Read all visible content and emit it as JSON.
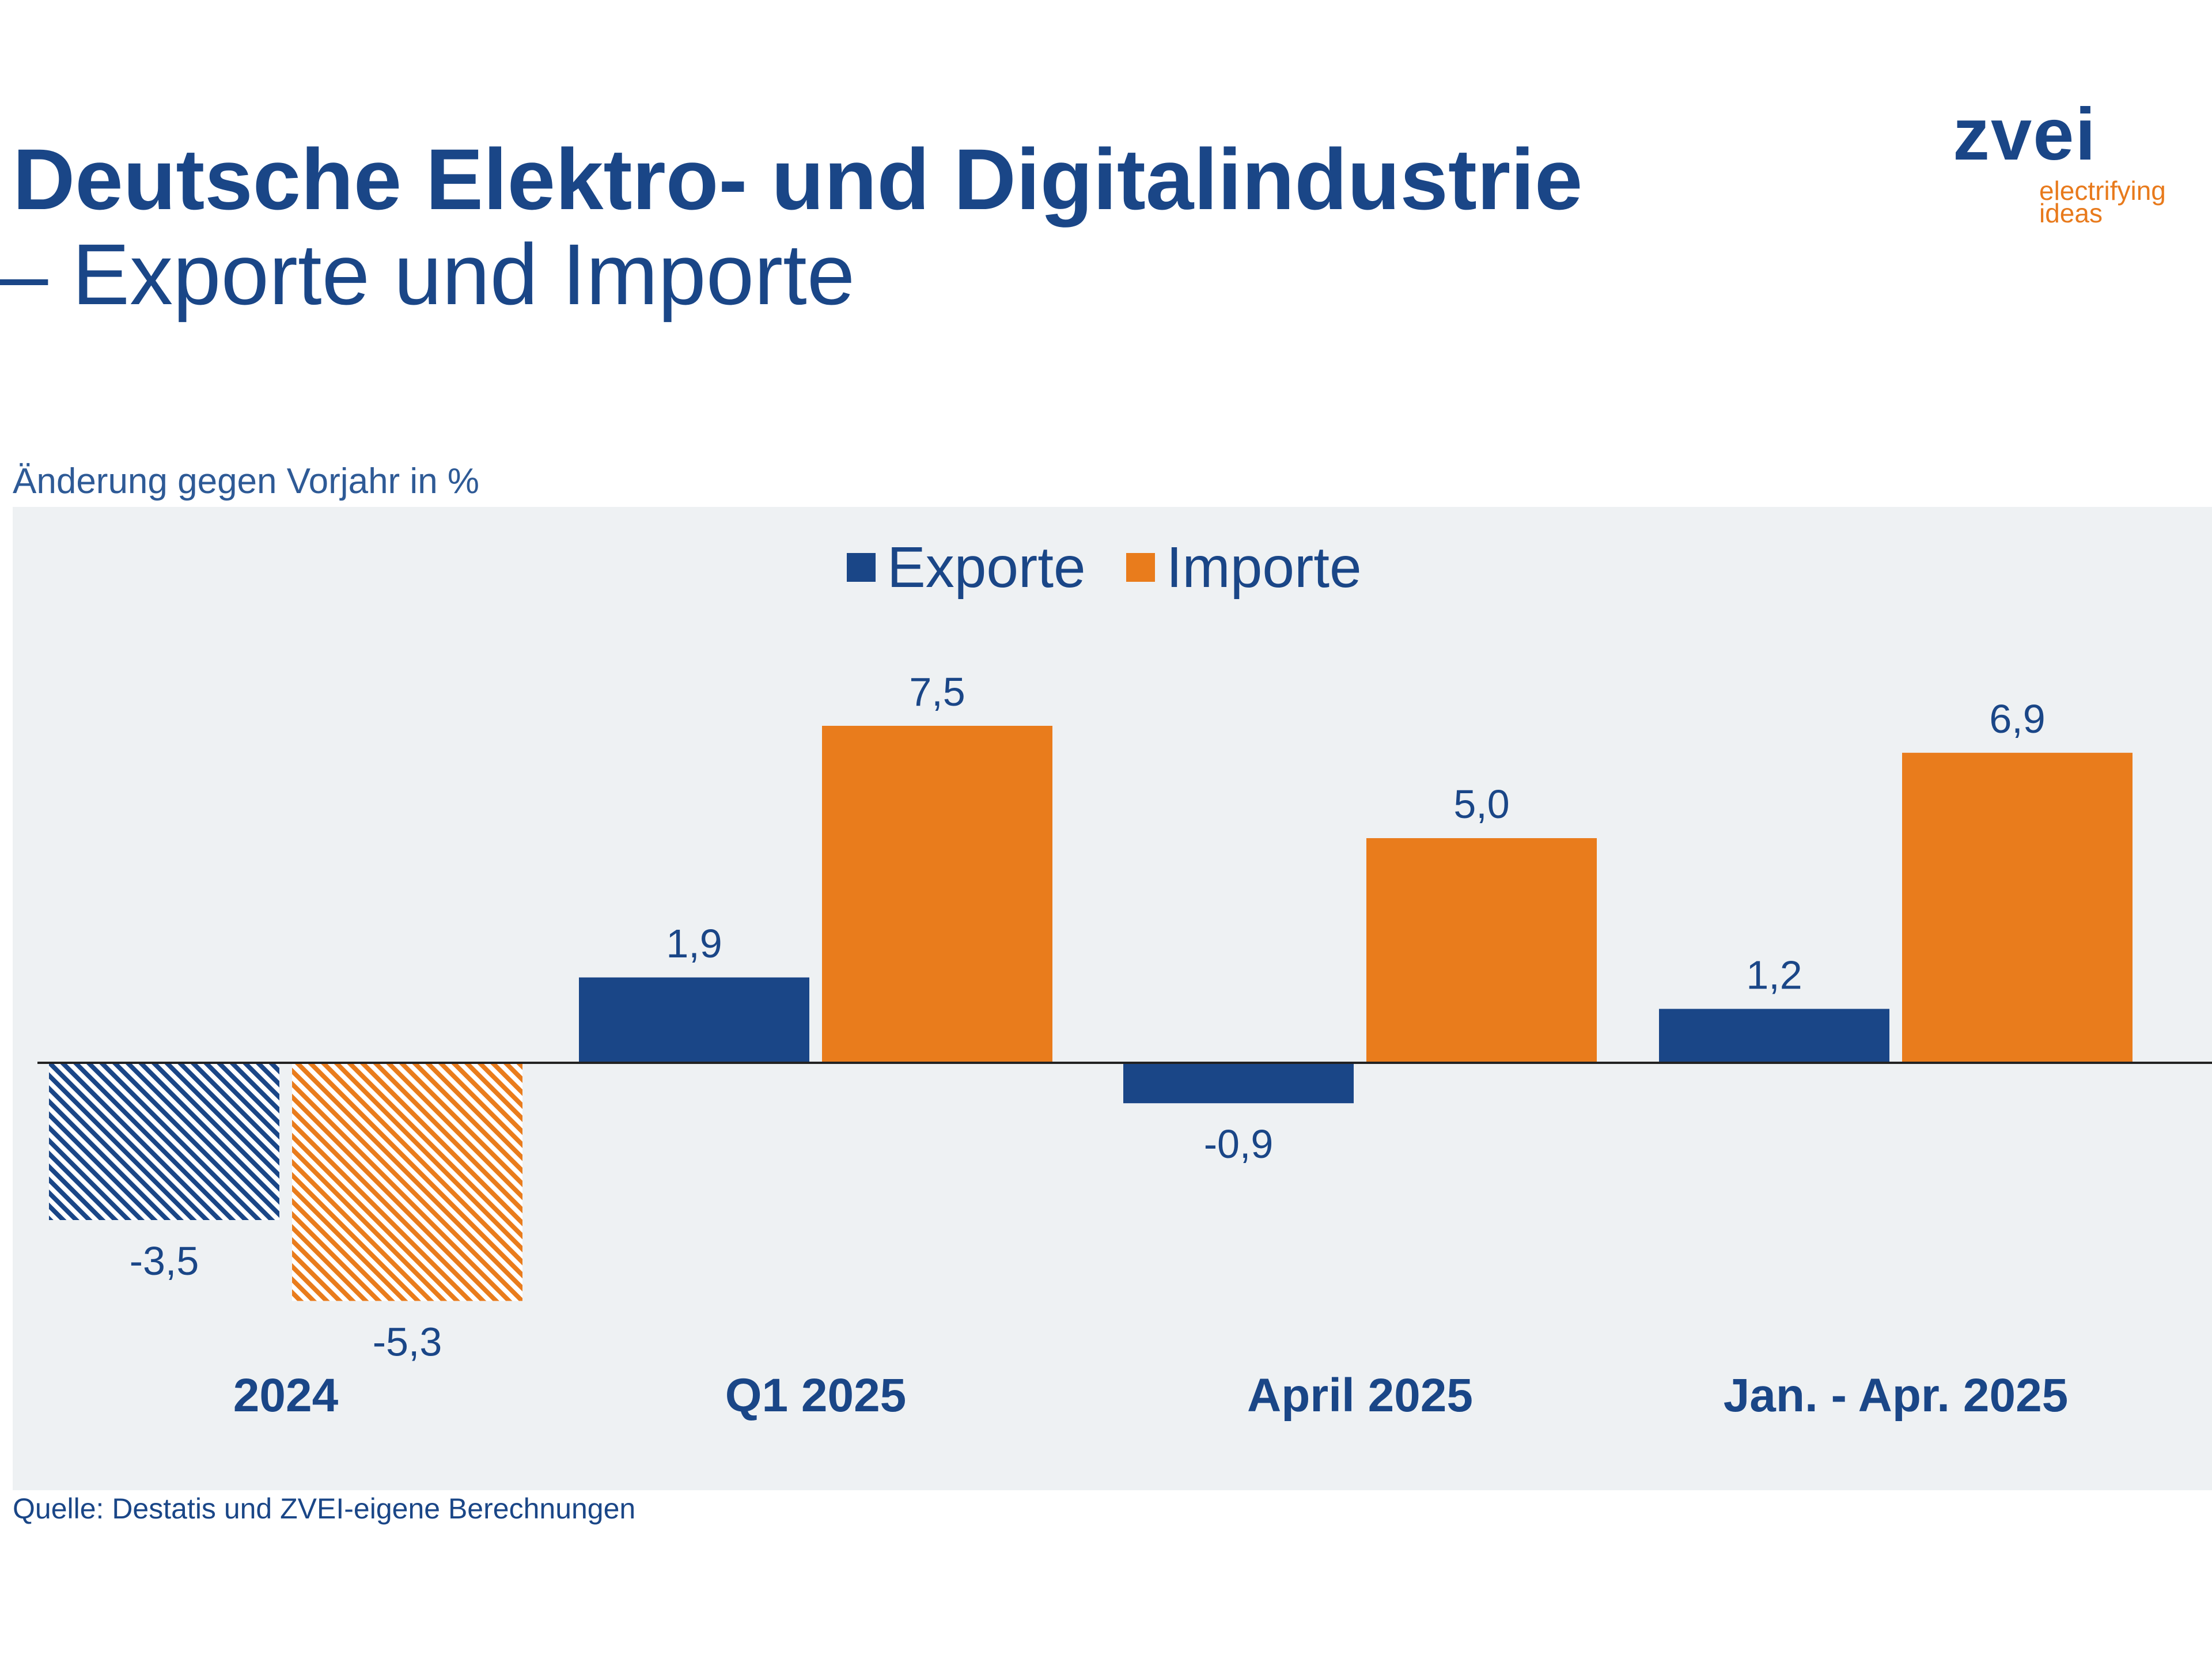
{
  "title_line1": "Deutsche Elektro- und Digitalindustrie",
  "title_line2": "– Exporte und Importe",
  "logo": {
    "word": "zvei",
    "tagline_1": "electrifying",
    "tagline_2": "ideas"
  },
  "source": "Quelle: Destatis und ZVEI-eigene Berechnungen",
  "colors": {
    "exporte": "#1a4687",
    "importe": "#e97c1c",
    "title": "#1a4687",
    "plot_background": "#eef1f3"
  },
  "chart_data": {
    "type": "bar",
    "title": "",
    "ylabel": "Änderung gegen Vorjahr in %",
    "xlabel": "",
    "legend_position": "top-center",
    "categories": [
      "2024",
      "Q1 2025",
      "April 2025",
      "Jan. - Apr. 2025"
    ],
    "series": [
      {
        "name": "Exporte",
        "values": [
          -3.5,
          1.9,
          -0.9,
          1.2
        ],
        "labels": [
          "-3,5",
          "1,9",
          "-0,9",
          "1,2"
        ],
        "hatched": [
          true,
          false,
          false,
          false
        ]
      },
      {
        "name": "Importe",
        "values": [
          -5.3,
          7.5,
          5.0,
          6.9
        ],
        "labels": [
          "-5,3",
          "7,5",
          "5,0",
          "6,9"
        ],
        "hatched": [
          true,
          false,
          false,
          false
        ]
      }
    ],
    "ylim": [
      -6.5,
      9.2
    ],
    "grid": false
  }
}
